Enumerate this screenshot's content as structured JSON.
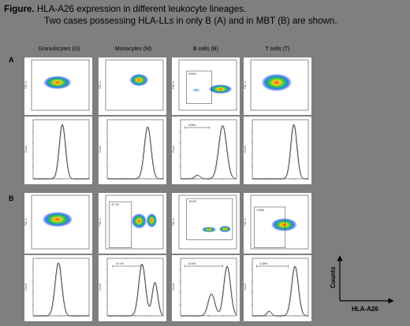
{
  "caption": {
    "label": "Figure.",
    "line1": "HLA-A26 expression in different leukocyte lineages.",
    "line2": "Two cases possessing HLA-LLs in only B (A) and in MBT (B) are shown."
  },
  "columns": [
    "Granulocytes (G)",
    "Monocytes (M)",
    "B cells (B)",
    "T cells (T)"
  ],
  "rows": [
    {
      "label": "A",
      "dot_gates": [
        null,
        null,
        "9.05%",
        null
      ],
      "hist_gates": [
        null,
        null,
        "9.05%",
        null
      ]
    },
    {
      "label": "B",
      "dot_gates": [
        null,
        "47.1%",
        "15.5%",
        "4.35%"
      ],
      "hist_gates": [
        null,
        "47.1%",
        "15.5%",
        "4.35%"
      ]
    }
  ],
  "axis_labels": {
    "y": "Counts",
    "x": "HLA-A26"
  },
  "panel_axis": {
    "dot_y": "FSC-A",
    "hist_y": "Count"
  }
}
